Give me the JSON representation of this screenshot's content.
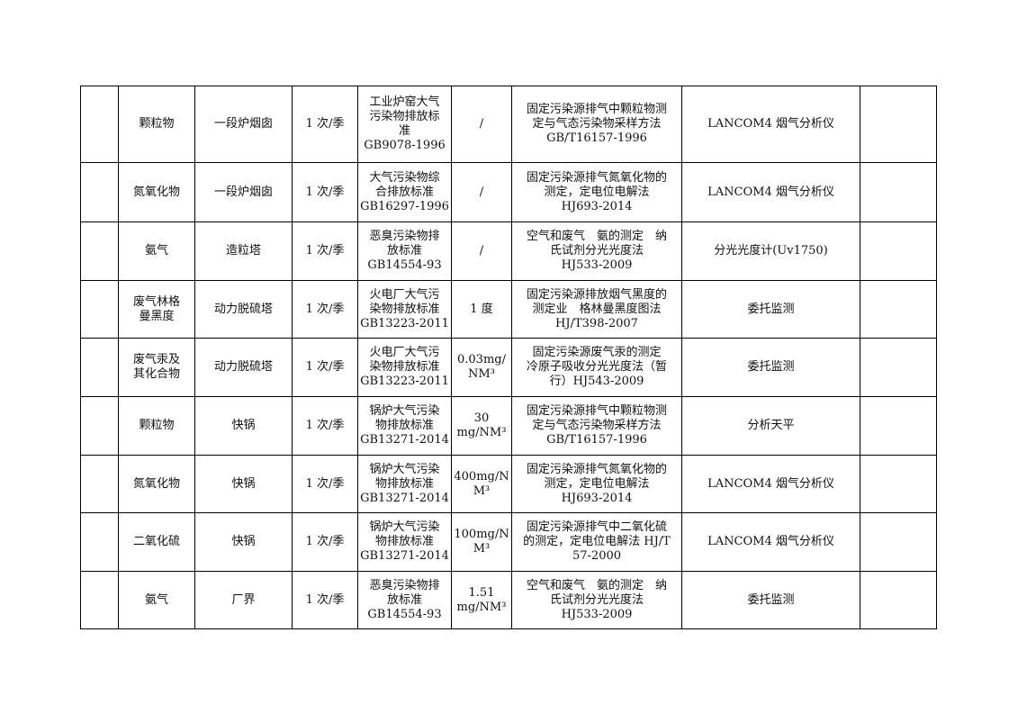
{
  "rows": [
    {
      "c0": "",
      "item": "颗粒物",
      "point": "一段炉烟囱",
      "freq": "1 次/季",
      "std": "工业炉窑大气\n污染物排放标\n准\nGB9078-1996",
      "limit": "/",
      "method": "固定污染源排气中颗粒物测\n定与气态污染物采样方法\nGB/T16157-1996",
      "instrument": "LANCOM4 烟气分析仪",
      "c8": ""
    },
    {
      "c0": "",
      "item": "氮氧化物",
      "point": "一段炉烟囱",
      "freq": "1 次/季",
      "std": "大气污染物综\n合排放标准\nGB16297-1996",
      "limit": "/",
      "method": "固定污染源排气氮氧化物的\n测定，定电位电解法\nHJ693-2014",
      "instrument": "LANCOM4 烟气分析仪",
      "c8": ""
    },
    {
      "c0": "",
      "item": "氨气",
      "point": "造粒塔",
      "freq": "1 次/季",
      "std": "恶臭污染物排\n放标准\nGB14554-93",
      "limit": "/",
      "method": "空气和废气　氨的测定　纳\n氏试剂分光光度法\nHJ533-2009",
      "instrument": "分光光度计(Uv1750)",
      "c8": ""
    },
    {
      "c0": "",
      "item": "废气林格\n曼黑度",
      "point": "动力脱硫塔",
      "freq": "1 次/季",
      "std": "火电厂大气污\n染物排放标准\nGB13223-2011",
      "limit": "1 度",
      "method": "固定污染源排放烟气黑度的\n测定业　格林曼黑度图法\nHJ/T398-2007",
      "instrument": "委托监测",
      "c8": ""
    },
    {
      "c0": "",
      "item": "废气汞及\n其化合物",
      "point": "动力脱硫塔",
      "freq": "1 次/季",
      "std": "火电厂大气污\n染物排放标准\nGB13223-2011",
      "limit": "0.03mg/\nNM³",
      "method": "固定污染源废气汞的测定\n冷原子吸收分光光度法（暂\n行）HJ543-2009",
      "instrument": "委托监测",
      "c8": ""
    },
    {
      "c0": "",
      "item": "颗粒物",
      "point": "快锅",
      "freq": "1 次/季",
      "std": "锅炉大气污染\n物排放标准\nGB13271-2014",
      "limit": "30\nmg/NM³",
      "method": "固定污染源排气中颗粒物测\n定与气态污染物采样方法\nGB/T16157-1996",
      "instrument": "分析天平",
      "c8": ""
    },
    {
      "c0": "",
      "item": "氮氧化物",
      "point": "快锅",
      "freq": "1 次/季",
      "std": "锅炉大气污染\n物排放标准\nGB13271-2014",
      "limit": "400mg/N\nM³",
      "method": "固定污染源排气氮氧化物的\n测定，定电位电解法\nHJ693-2014",
      "instrument": "LANCOM4 烟气分析仪",
      "c8": ""
    },
    {
      "c0": "",
      "item": "二氧化硫",
      "point": "快锅",
      "freq": "1 次/季",
      "std": "锅炉大气污染\n物排放标准\nGB13271-2014",
      "limit": "100mg/N\nM³",
      "method": "固定污染源排气中二氧化硫\n的测定，定电位电解法 HJ/T\n57-2000",
      "instrument": "LANCOM4 烟气分析仪",
      "c8": ""
    },
    {
      "c0": "",
      "item": "氨气",
      "point": "厂界",
      "freq": "1 次/季",
      "std": "恶臭污染物排\n放标准\nGB14554-93",
      "limit": "1.51\nmg/NM³",
      "method": "空气和废气　氨的测定　纳\n氏试剂分光光度法\nHJ533-2009",
      "instrument": "委托监测",
      "c8": ""
    }
  ]
}
